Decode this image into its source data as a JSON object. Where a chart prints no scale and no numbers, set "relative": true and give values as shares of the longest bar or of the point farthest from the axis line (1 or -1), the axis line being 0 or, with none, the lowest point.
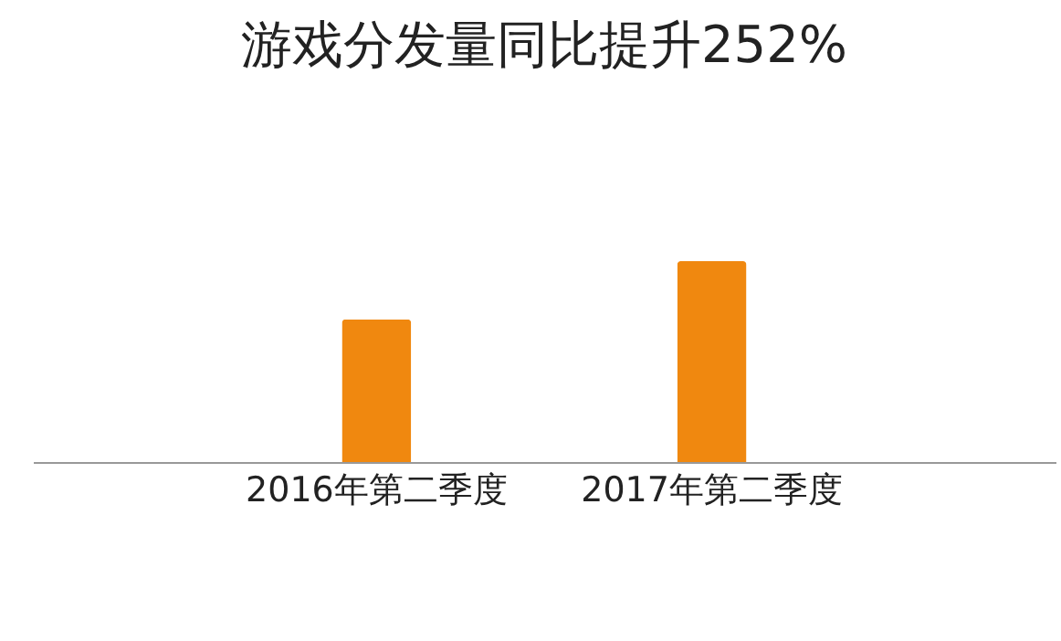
{
  "chart_data": {
    "type": "bar",
    "title": "游戏分发量同比提升252%",
    "categories": [
      "2016年第二季度",
      "2017年第二季度"
    ],
    "values": [
      0.71,
      1
    ],
    "color": "#f0880f",
    "relative": true
  }
}
